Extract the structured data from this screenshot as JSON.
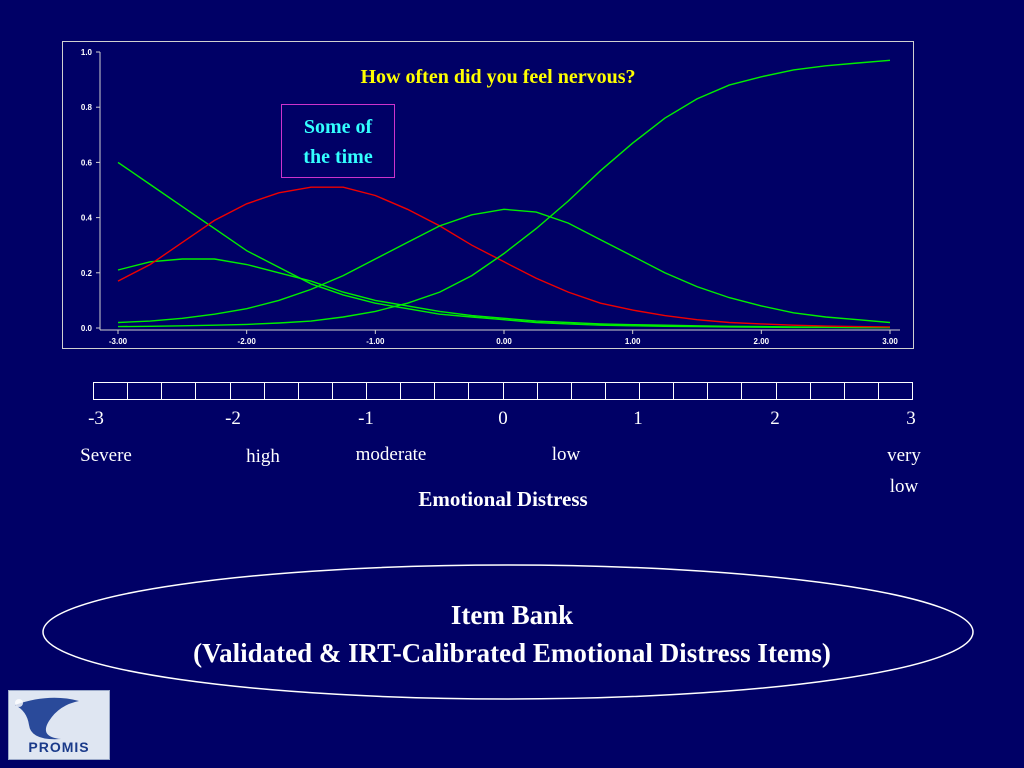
{
  "slide": {
    "background": "#000066",
    "scale_numbers": [
      "-3",
      "-2",
      "-1",
      "0",
      "1",
      "2",
      "3"
    ],
    "scale_words": {
      "severe": "Severe",
      "high": "high",
      "moderate": "moderate",
      "low": "low",
      "very_low_1": "very",
      "very_low_2": "low"
    },
    "axis_title": "Emotional Distress",
    "item_bank": {
      "line1": "Item Bank",
      "line2": "(Validated & IRT-Calibrated Emotional Distress Items)"
    },
    "logo_text": "PROMIS",
    "scale_cells": 24
  },
  "chart_data": {
    "type": "line",
    "title": "How often did you feel nervous?",
    "annotation": {
      "line1": "Some of",
      "line2": "the time",
      "color": "#33ffff",
      "border": "#cc33cc"
    },
    "title_color": "#ffff00",
    "xlim": [
      -3,
      3
    ],
    "ylim": [
      0,
      1
    ],
    "x_ticks": [
      "-3.00",
      "-2.00",
      "-1.00",
      "0.00",
      "1.00",
      "2.00",
      "3.00"
    ],
    "y_ticks": [
      "0.0",
      "0.2",
      "0.4",
      "0.6",
      "0.8",
      "1.0"
    ],
    "grid": false,
    "x": [
      -3.0,
      -2.75,
      -2.5,
      -2.25,
      -2.0,
      -1.75,
      -1.5,
      -1.25,
      -1.0,
      -0.75,
      -0.5,
      -0.25,
      0.0,
      0.25,
      0.5,
      0.75,
      1.0,
      1.25,
      1.5,
      1.75,
      2.0,
      2.25,
      2.5,
      2.75,
      3.0
    ],
    "series": [
      {
        "color": "#00ee00",
        "values": [
          0.6,
          0.52,
          0.44,
          0.36,
          0.28,
          0.22,
          0.16,
          0.12,
          0.09,
          0.07,
          0.05,
          0.04,
          0.03,
          0.02,
          0.015,
          0.01,
          0.008,
          0.006,
          0.005,
          0.004,
          0.003,
          0.002,
          0.002,
          0.001,
          0.001
        ]
      },
      {
        "color": "#00ee00",
        "values": [
          0.21,
          0.24,
          0.25,
          0.25,
          0.23,
          0.2,
          0.17,
          0.13,
          0.1,
          0.08,
          0.06,
          0.045,
          0.035,
          0.025,
          0.02,
          0.015,
          0.012,
          0.01,
          0.008,
          0.006,
          0.005,
          0.004,
          0.003,
          0.002,
          0.002
        ]
      },
      {
        "color": "#ee0000",
        "values": [
          0.17,
          0.23,
          0.31,
          0.39,
          0.45,
          0.49,
          0.51,
          0.51,
          0.48,
          0.43,
          0.37,
          0.3,
          0.24,
          0.18,
          0.13,
          0.09,
          0.065,
          0.045,
          0.03,
          0.02,
          0.015,
          0.01,
          0.007,
          0.005,
          0.004
        ]
      },
      {
        "color": "#00ee00",
        "values": [
          0.02,
          0.025,
          0.035,
          0.05,
          0.07,
          0.1,
          0.14,
          0.19,
          0.25,
          0.31,
          0.37,
          0.41,
          0.43,
          0.42,
          0.38,
          0.32,
          0.26,
          0.2,
          0.15,
          0.11,
          0.08,
          0.055,
          0.04,
          0.03,
          0.02
        ]
      },
      {
        "color": "#00ee00",
        "values": [
          0.005,
          0.006,
          0.008,
          0.01,
          0.013,
          0.018,
          0.025,
          0.04,
          0.06,
          0.09,
          0.13,
          0.19,
          0.27,
          0.36,
          0.46,
          0.57,
          0.67,
          0.76,
          0.83,
          0.88,
          0.91,
          0.935,
          0.95,
          0.96,
          0.97
        ]
      }
    ]
  }
}
